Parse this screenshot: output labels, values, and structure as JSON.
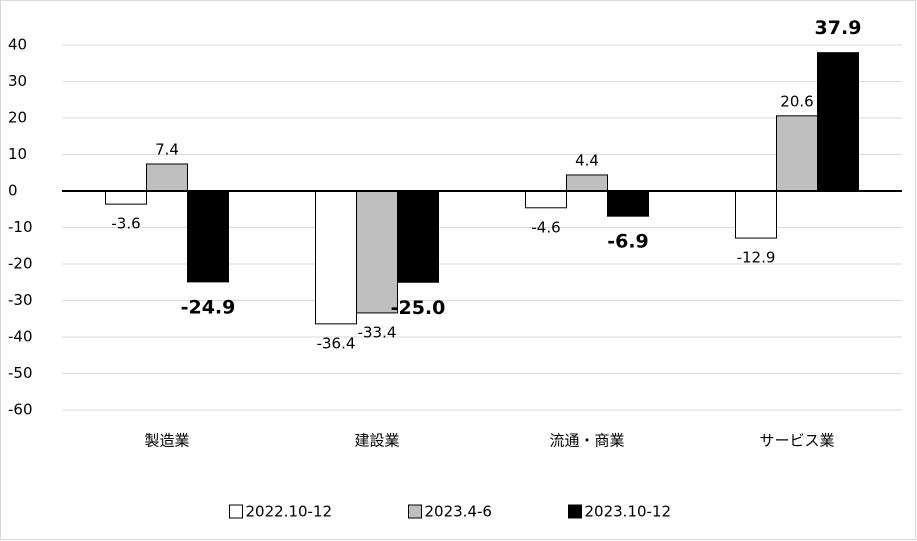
{
  "chart_data": {
    "type": "bar",
    "categories": [
      "製造業",
      "建設業",
      "流通・商業",
      "サービス業"
    ],
    "series": [
      {
        "name": "2022.10-12",
        "color": "#ffffff",
        "values": [
          -3.6,
          -36.4,
          -4.6,
          -12.9
        ]
      },
      {
        "name": "2023.4-6",
        "color": "#bfbfbf",
        "values": [
          7.4,
          -33.4,
          4.4,
          20.6
        ]
      },
      {
        "name": "2023.10-12",
        "color": "#000000",
        "values": [
          -24.9,
          -25.0,
          -6.9,
          37.9
        ],
        "value_labels": [
          "-24.9",
          "-25.0",
          "-6.9",
          "37.9"
        ]
      }
    ],
    "ylim": [
      -60,
      40
    ],
    "yticks": [
      -60,
      -50,
      -40,
      -30,
      -20,
      -10,
      0,
      10,
      20,
      30,
      40
    ],
    "grid": true,
    "legend": "bottom"
  }
}
